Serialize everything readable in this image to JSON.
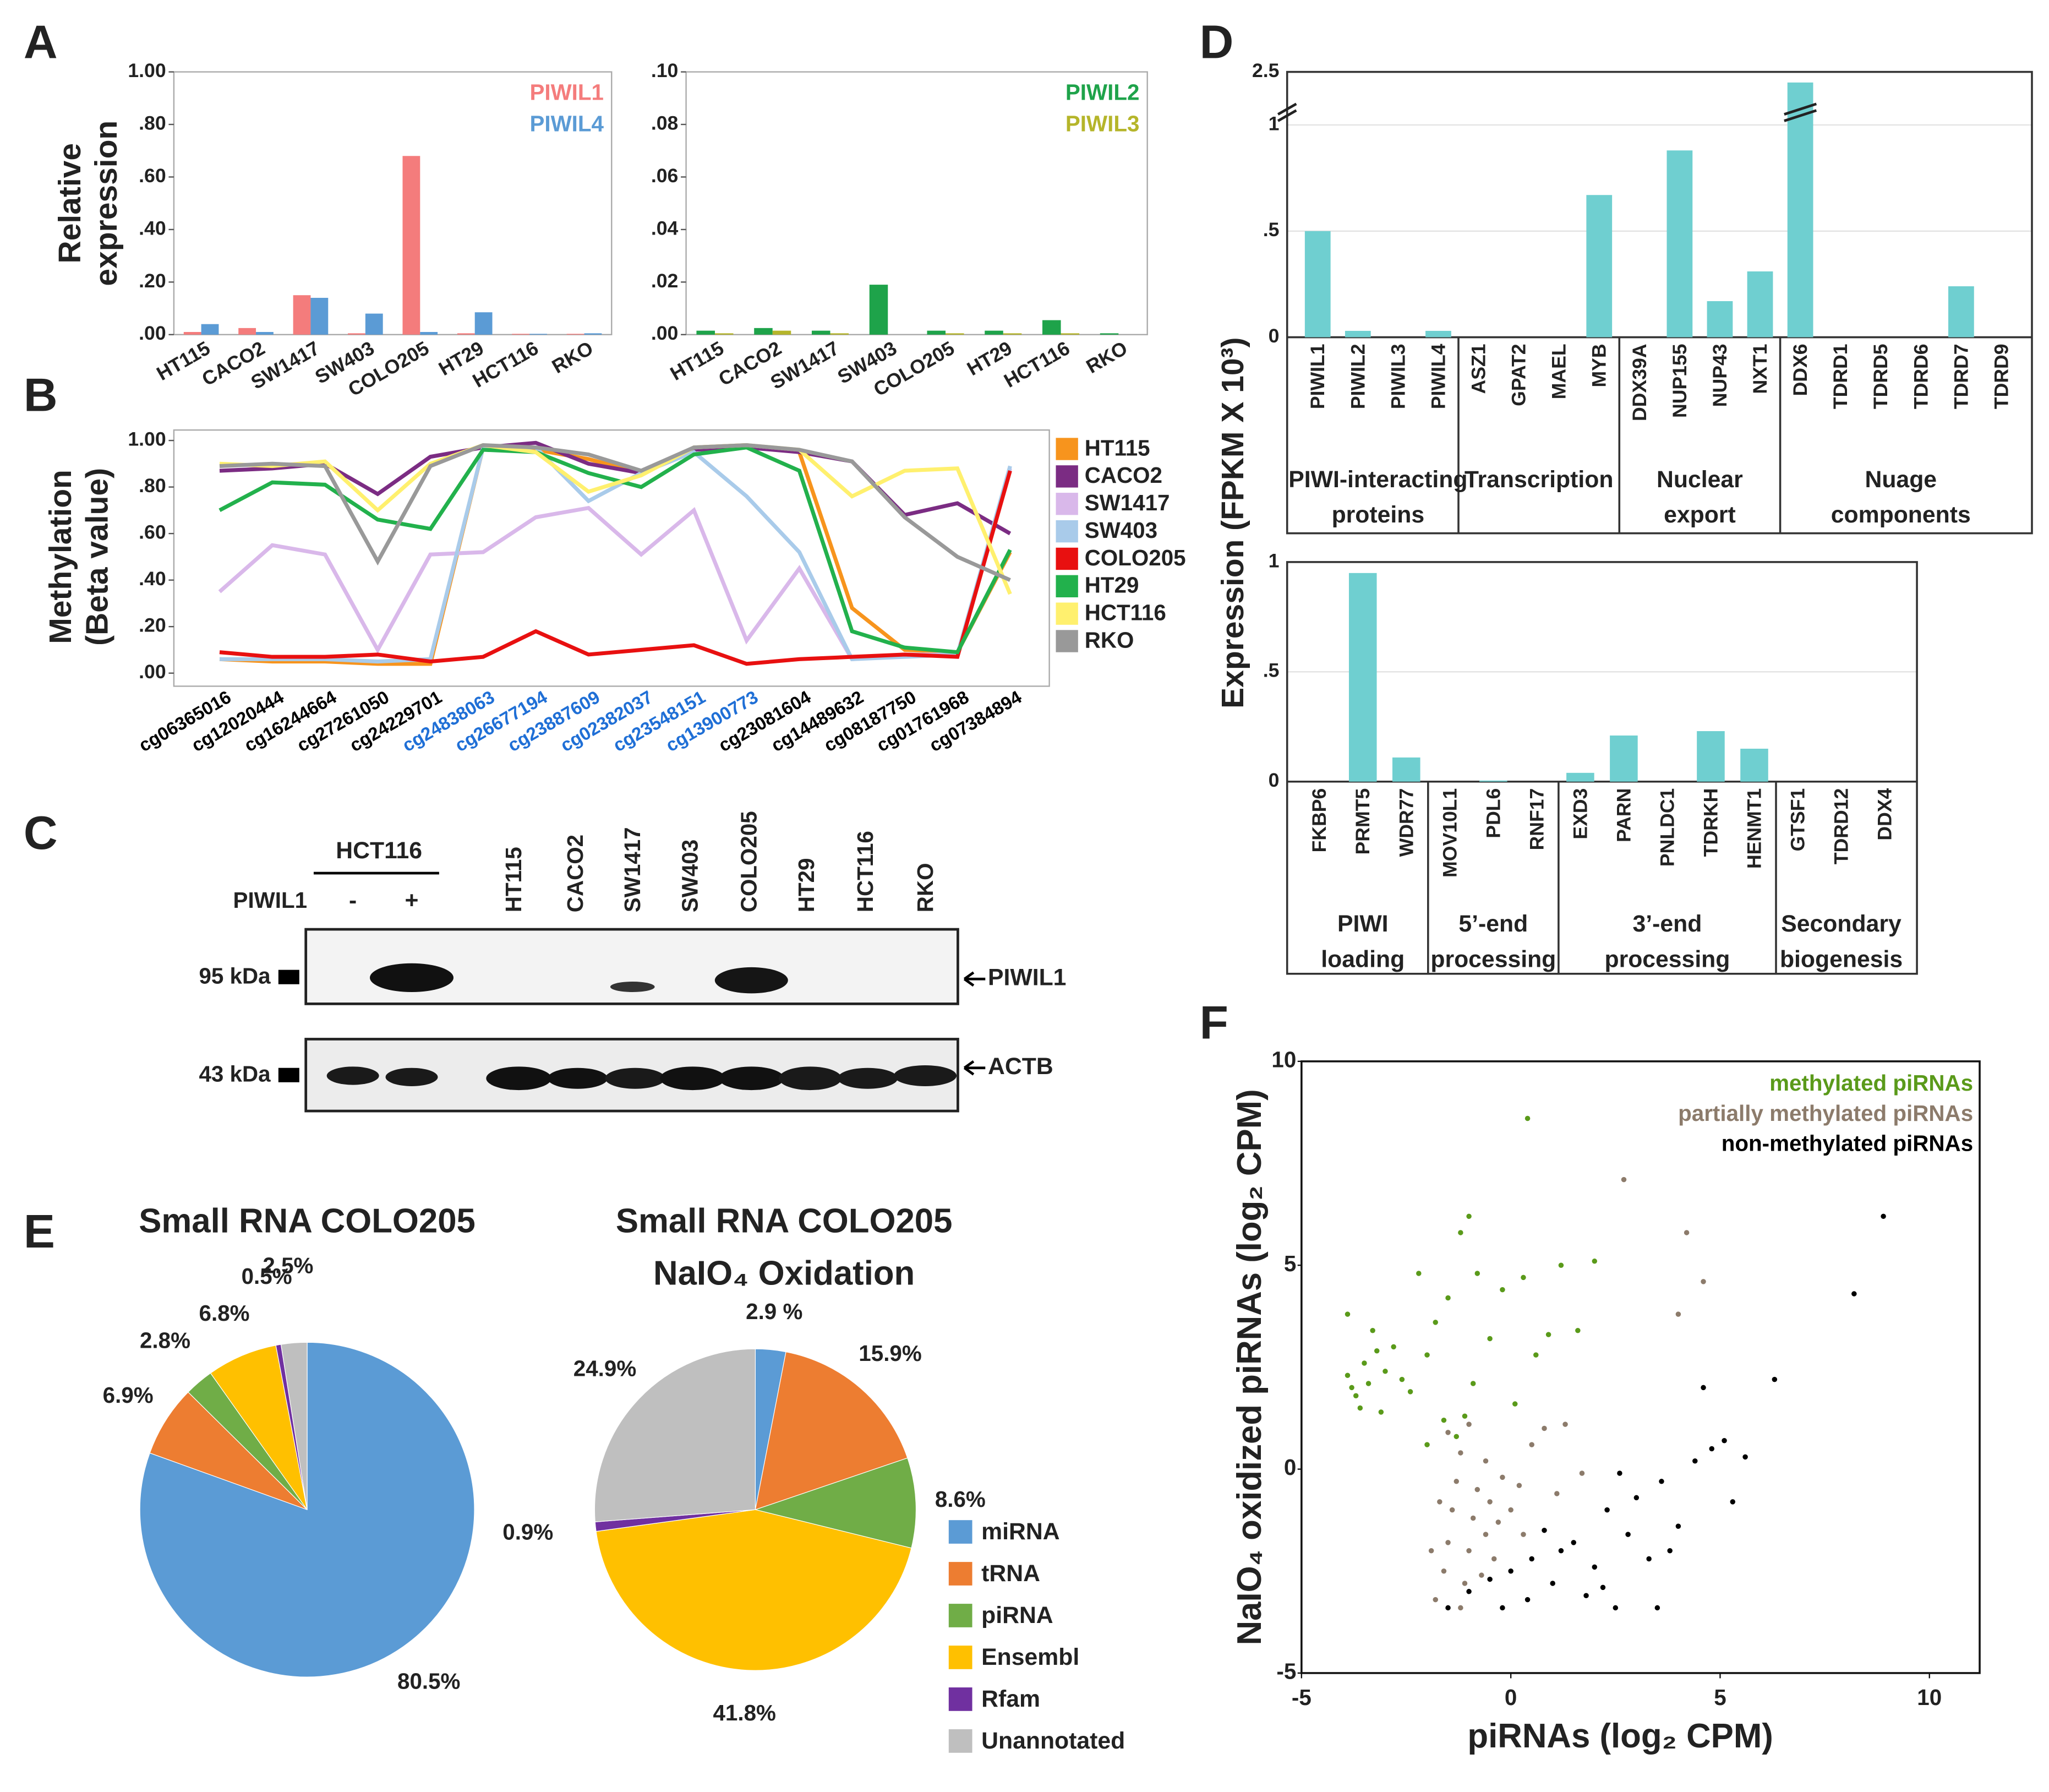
{
  "panels": [
    "A",
    "B",
    "C",
    "D",
    "E",
    "F"
  ],
  "chart_data": [
    {
      "type": "bar",
      "ylabel": [
        "Relative",
        "expression"
      ],
      "categories": [
        "HT115",
        "CACO2",
        "SW1417",
        "SW403",
        "COLO205",
        "HT29",
        "HCT116",
        "RKO"
      ],
      "series": [
        {
          "name": "PIWIL1",
          "color": "#f47c7c",
          "values": [
            0.01,
            0.025,
            0.15,
            0.005,
            0.68,
            0.005,
            0.003,
            0.003
          ]
        },
        {
          "name": "PIWIL4",
          "color": "#5b9bd5",
          "values": [
            0.04,
            0.01,
            0.14,
            0.08,
            0.01,
            0.085,
            0.003,
            0.005
          ]
        }
      ],
      "ylim": [
        0,
        1
      ],
      "yticks": [
        {
          "value": 0,
          "label": ".00"
        },
        {
          "value": 0.2,
          "label": ".20"
        },
        {
          "value": 0.4,
          "label": ".40"
        },
        {
          "value": 0.6,
          "label": ".60"
        },
        {
          "value": 0.8,
          "label": ".80"
        },
        {
          "value": 1,
          "label": "1.00"
        }
      ]
    },
    {
      "type": "bar",
      "categories": [
        "HT115",
        "CACO2",
        "SW1417",
        "SW403",
        "COLO205",
        "HT29",
        "HCT116",
        "RKO"
      ],
      "series": [
        {
          "name": "PIWIL2",
          "color": "#1ea34a",
          "values": [
            0.0015,
            0.0025,
            0.0015,
            0.019,
            0.0015,
            0.0015,
            0.0055,
            0.0005
          ]
        },
        {
          "name": "PIWIL3",
          "color": "#b5b52a",
          "values": [
            0.0005,
            0.0015,
            0.0005,
            0,
            0.0005,
            0.0005,
            0.0005,
            0
          ]
        }
      ],
      "ylim": [
        0,
        0.1
      ],
      "yticks": [
        {
          "value": 0,
          "label": ".00"
        },
        {
          "value": 0.02,
          "label": ".02"
        },
        {
          "value": 0.04,
          "label": ".04"
        },
        {
          "value": 0.06,
          "label": ".06"
        },
        {
          "value": 0.08,
          "label": ".08"
        },
        {
          "value": 0.1,
          "label": ".10"
        }
      ]
    },
    {
      "type": "line",
      "ylabel": [
        "Methylation",
        "(Beta value)"
      ],
      "categories": [
        "cg06365016",
        "cg12020444",
        "cg16244664",
        "cg27261050",
        "cg24229701",
        "cg24838063",
        "cg26677194",
        "cg23887609",
        "cg02382037",
        "cg23548151",
        "cg13900773",
        "cg23081604",
        "cg14489632",
        "cg08187750",
        "cg01761968",
        "cg07384894"
      ],
      "category_colors": [
        "#000000",
        "#000000",
        "#000000",
        "#000000",
        "#000000",
        "#1f6fd6",
        "#1f6fd6",
        "#1f6fd6",
        "#1f6fd6",
        "#1f6fd6",
        "#1f6fd6",
        "#000000",
        "#000000",
        "#000000",
        "#000000",
        "#000000"
      ],
      "series": [
        {
          "name": "HT115",
          "color": "#f7941d",
          "values": [
            0.06,
            0.05,
            0.05,
            0.04,
            0.04,
            0.97,
            0.96,
            0.92,
            0.86,
            0.97,
            0.98,
            0.95,
            0.28,
            0.1,
            0.09,
            0.52
          ]
        },
        {
          "name": "CACO2",
          "color": "#7b2c83",
          "values": [
            0.87,
            0.88,
            0.9,
            0.77,
            0.93,
            0.97,
            0.99,
            0.9,
            0.86,
            0.96,
            0.97,
            0.95,
            0.91,
            0.68,
            0.73,
            0.6
          ]
        },
        {
          "name": "SW1417",
          "color": "#d9b8ea",
          "values": [
            0.35,
            0.55,
            0.51,
            0.1,
            0.51,
            0.52,
            0.67,
            0.71,
            0.51,
            0.7,
            0.14,
            0.45,
            0.06,
            0.08,
            0.08,
            0.88
          ]
        },
        {
          "name": "SW403",
          "color": "#a9cbea",
          "values": [
            0.06,
            0.06,
            0.06,
            0.05,
            0.06,
            0.97,
            0.97,
            0.74,
            0.86,
            0.95,
            0.76,
            0.52,
            0.06,
            0.07,
            0.08,
            0.89
          ]
        },
        {
          "name": "COLO205",
          "color": "#e81010",
          "values": [
            0.09,
            0.07,
            0.07,
            0.08,
            0.05,
            0.07,
            0.18,
            0.08,
            0.1,
            0.12,
            0.04,
            0.06,
            0.07,
            0.08,
            0.07,
            0.87
          ]
        },
        {
          "name": "HT29",
          "color": "#22b14c",
          "values": [
            0.7,
            0.82,
            0.81,
            0.66,
            0.62,
            0.96,
            0.95,
            0.86,
            0.8,
            0.94,
            0.97,
            0.87,
            0.18,
            0.11,
            0.09,
            0.53
          ]
        },
        {
          "name": "HCT116",
          "color": "#fff06e",
          "values": [
            0.9,
            0.89,
            0.91,
            0.7,
            0.9,
            0.98,
            0.95,
            0.78,
            0.85,
            0.97,
            0.98,
            0.96,
            0.76,
            0.87,
            0.88,
            0.34
          ]
        },
        {
          "name": "RKO",
          "color": "#999999",
          "values": [
            0.89,
            0.9,
            0.89,
            0.48,
            0.89,
            0.98,
            0.97,
            0.94,
            0.87,
            0.97,
            0.98,
            0.96,
            0.91,
            0.67,
            0.5,
            0.4
          ]
        }
      ],
      "ylim": [
        0,
        1
      ],
      "yticks": [
        {
          "value": 0,
          "label": ".00"
        },
        {
          "value": 0.2,
          "label": ".20"
        },
        {
          "value": 0.4,
          "label": ".40"
        },
        {
          "value": 0.6,
          "label": ".60"
        },
        {
          "value": 0.8,
          "label": ".80"
        },
        {
          "value": 1,
          "label": "1.00"
        }
      ]
    },
    {
      "type": "bar",
      "ylabel": "Expression (FPKM X 10³)",
      "color": "#6fcfd0",
      "grid": true,
      "ylim": [
        0,
        2.5
      ],
      "ybreak": [
        1.05,
        2.3
      ],
      "yticks": [
        0,
        {
          "value": 0.5,
          "label": ".5"
        },
        1,
        2.5
      ],
      "groups": [
        {
          "label": [
            "PIWI-interacting",
            "proteins"
          ],
          "categories": [
            "PIWIL1",
            "PIWIL2",
            "PIWIL3",
            "PIWIL4"
          ],
          "values": [
            0.5,
            0.03,
            0,
            0.03
          ]
        },
        {
          "label": [
            "Transcription"
          ],
          "categories": [
            "ASZ1",
            "GPAT2",
            "MAEL",
            "MYB"
          ],
          "values": [
            0,
            0,
            0,
            0.67
          ]
        },
        {
          "label": [
            "Nuclear",
            "export"
          ],
          "categories": [
            "DDX39A",
            "NUP155",
            "NUP43",
            "NXT1"
          ],
          "values": [
            0,
            0.88,
            0.17,
            0.31
          ]
        },
        {
          "label": [
            "Nuage",
            "components"
          ],
          "categories": [
            "DDX6",
            "TDRD1",
            "TDRD5",
            "TDRD6",
            "TDRD7",
            "TDRD9"
          ],
          "values": [
            2.45,
            0,
            0,
            0,
            0.24,
            0
          ]
        }
      ]
    },
    {
      "type": "bar",
      "color": "#6fcfd0",
      "grid": true,
      "ylim": [
        0,
        1
      ],
      "yticks": [
        0,
        {
          "value": 0.5,
          "label": ".5"
        },
        1
      ],
      "groups": [
        {
          "label": [
            "PIWI",
            "loading"
          ],
          "categories": [
            "FKBP6",
            "PRMT5",
            "WDR77"
          ],
          "values": [
            0,
            0.95,
            0.11
          ]
        },
        {
          "label": [
            "5’-end",
            "processing"
          ],
          "categories": [
            "MOV10L1",
            "PDL6",
            "RNF17"
          ],
          "values": [
            0,
            0.005,
            0
          ]
        },
        {
          "label": [
            "3’-end",
            "processing"
          ],
          "categories": [
            "EXD3",
            "PARN",
            "PNLDC1",
            "TDRKH",
            "HENMT1"
          ],
          "values": [
            0.04,
            0.21,
            0,
            0.23,
            0.15
          ]
        },
        {
          "label": [
            "Secondary",
            "biogenesis"
          ],
          "categories": [
            "GTSF1",
            "TDRD12",
            "DDX4"
          ],
          "values": [
            0,
            0,
            0
          ]
        }
      ]
    },
    {
      "type": "pie",
      "categories": [
        "miRNA",
        "tRNA",
        "piRNA",
        "Ensembl",
        "Rfam",
        "Unannotated"
      ],
      "colors": [
        "#5b9bd5",
        "#ed7d31",
        "#70ad47",
        "#ffc000",
        "#7030a0",
        "#bfbfbf"
      ],
      "pies": [
        {
          "title": [
            "Small RNA COLO205"
          ],
          "values": [
            80.5,
            6.9,
            2.8,
            6.8,
            0.5,
            2.5
          ],
          "value_labels": [
            "80.5%",
            "6.9%",
            "2.8%",
            "6.8%",
            "0.5%",
            "2.5%"
          ]
        },
        {
          "title": [
            "Small RNA COLO205",
            "NaIO₄ Oxidation"
          ],
          "values": [
            2.9,
            15.9,
            8.6,
            41.8,
            0.9,
            24.9
          ],
          "value_labels": [
            "2.9 %",
            "15.9%",
            "8.6%",
            "41.8%",
            "0.9%",
            "24.9%"
          ]
        }
      ]
    },
    {
      "type": "scatter",
      "xlabel": "piRNAs  (log₂ CPM)",
      "ylabel": "NaIO₄ oxidized piRNAs (log₂ CPM)",
      "xlim": [
        -5,
        11.2
      ],
      "ylim": [
        -5,
        10
      ],
      "xticks": [
        -5,
        0,
        5,
        10
      ],
      "yticks": [
        -5,
        0,
        5,
        10
      ],
      "series": [
        {
          "name": "methylated piRNAs",
          "color": "#5a9a1a",
          "x": [
            -3.8,
            -3.6,
            -3.9,
            -3.5,
            -3.7,
            -3.4,
            -3.2,
            -3.0,
            -2.8,
            -3.3,
            -2.6,
            -2.4,
            -2.0,
            -1.8,
            -1.5,
            -1.2,
            -1.0,
            -0.8,
            -0.5,
            -0.2,
            0.3,
            0.6,
            0.9,
            1.2,
            1.6,
            2.0,
            0.4,
            -2.2,
            -3.9,
            -1.6,
            -1.3,
            -0.9,
            0.1,
            -3.1,
            -2.0,
            -1.1
          ],
          "y": [
            2.0,
            1.5,
            2.3,
            2.6,
            1.8,
            2.1,
            2.9,
            2.4,
            3.0,
            3.4,
            2.2,
            1.9,
            2.8,
            3.6,
            4.2,
            5.8,
            6.2,
            4.8,
            3.2,
            4.4,
            4.7,
            2.8,
            3.3,
            5.0,
            3.4,
            5.1,
            8.6,
            4.8,
            3.8,
            1.2,
            0.8,
            2.1,
            1.6,
            1.4,
            0.6,
            1.3
          ]
        },
        {
          "name": "partially methylated piRNAs",
          "color": "#8c7b6b",
          "x": [
            -1.8,
            -1.6,
            -1.5,
            -1.4,
            -1.3,
            -1.2,
            -1.1,
            -1.0,
            -0.9,
            -0.8,
            -0.7,
            -0.6,
            -0.5,
            -0.4,
            -0.3,
            -0.2,
            0.0,
            0.2,
            0.5,
            0.8,
            1.3,
            1.7,
            1.1,
            -1.7,
            -1.5,
            -1.9,
            -1.2,
            2.7,
            4.6,
            4.2,
            4.0,
            -0.6,
            0.3,
            -1.0
          ],
          "y": [
            -3.2,
            -2.5,
            -1.8,
            -1.0,
            -0.3,
            0.4,
            -2.8,
            -2.0,
            -1.2,
            -0.5,
            -2.6,
            -1.6,
            -0.8,
            -2.2,
            -1.3,
            -0.2,
            -1.0,
            -0.4,
            0.6,
            1.0,
            1.1,
            -0.1,
            -0.6,
            -0.8,
            0.9,
            -2.0,
            -3.4,
            7.1,
            4.6,
            5.8,
            3.8,
            0.2,
            -1.6,
            1.1
          ]
        },
        {
          "name": "non-methylated piRNAs",
          "color": "#000000",
          "x": [
            -1.5,
            -1.0,
            -0.5,
            0.0,
            0.5,
            0.8,
            1.0,
            1.5,
            2.0,
            2.3,
            2.8,
            3.0,
            3.3,
            3.6,
            4.0,
            4.4,
            4.8,
            5.1,
            5.3,
            2.5,
            3.5,
            1.8,
            -0.2,
            0.4,
            1.2,
            6.3,
            8.2,
            8.9,
            4.6,
            2.6,
            5.6,
            2.2,
            3.8
          ],
          "y": [
            -3.4,
            -3.0,
            -2.7,
            -2.5,
            -2.2,
            -1.5,
            -2.8,
            -1.8,
            -2.4,
            -1.0,
            -1.6,
            -0.7,
            -2.2,
            -0.3,
            -1.4,
            0.2,
            0.5,
            0.7,
            -0.8,
            -3.4,
            -3.4,
            -3.1,
            -3.4,
            -3.2,
            -2.0,
            2.2,
            4.3,
            6.2,
            2.0,
            -0.1,
            0.3,
            -2.9,
            -2.0
          ]
        }
      ]
    }
  ],
  "blot": {
    "header": "HCT116",
    "row_label": "PIWIL1",
    "treatments": [
      "-",
      "+"
    ],
    "lanes": [
      "HT115",
      "CACO2",
      "SW1417",
      "SW403",
      "COLO205",
      "HT29",
      "HCT116",
      "RKO"
    ],
    "markers": [
      "95 kDa",
      "43 kDa"
    ],
    "bands": [
      "PIWIL1",
      "ACTB"
    ]
  }
}
